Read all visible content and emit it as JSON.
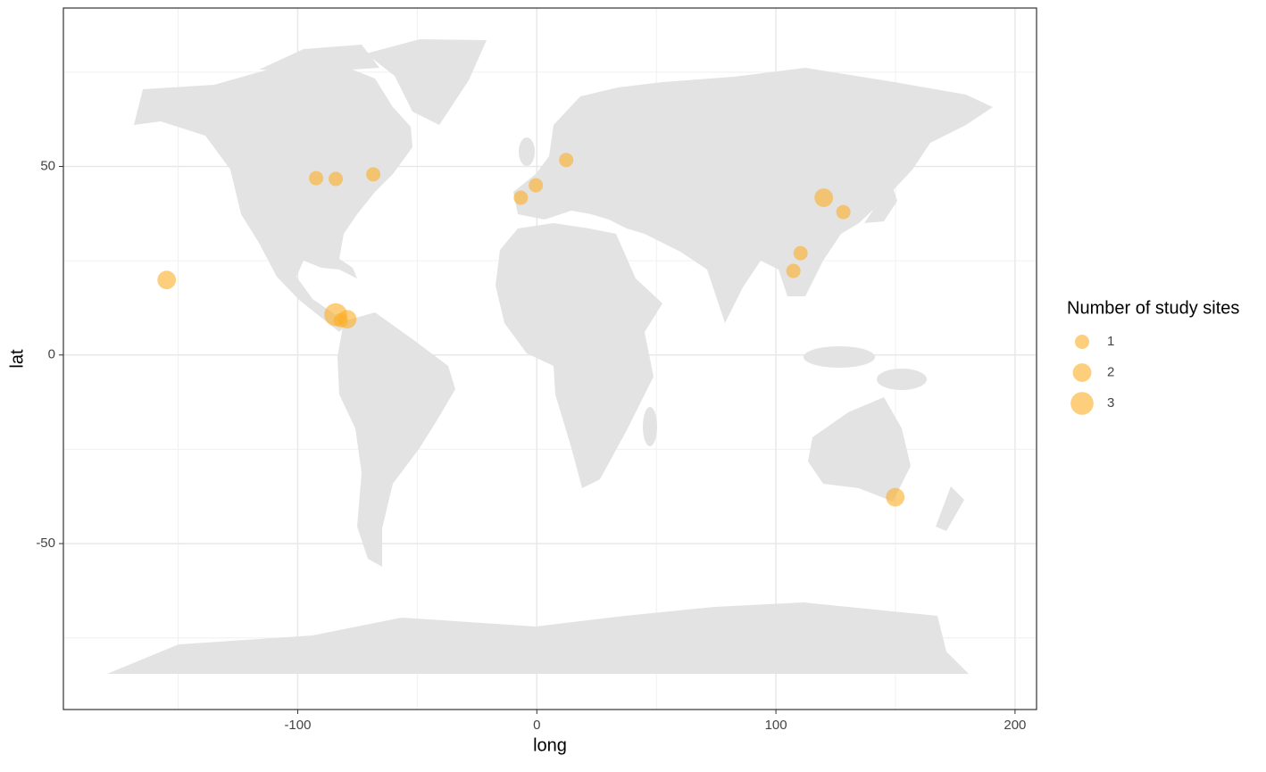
{
  "chart_data": {
    "type": "scatter",
    "x_label": "long",
    "y_label": "lat",
    "xlim": [
      -198,
      209
    ],
    "ylim": [
      -94,
      92
    ],
    "xticks": [
      -100,
      0,
      100,
      200
    ],
    "yticks": [
      -50,
      0,
      50
    ],
    "xminorticks": [
      -150,
      -50,
      50,
      150
    ],
    "yminorticks": [
      -75,
      -25,
      25,
      75
    ],
    "grid": true,
    "color": "#fbae25",
    "legend_title": "Number of study sites",
    "legend_sizes": [
      1,
      2,
      3
    ],
    "legend_position": "right",
    "x": [
      -154.8,
      -92.3,
      -84.1,
      -68.4,
      -84.1,
      -79.3,
      -82,
      -6.7,
      -0.4,
      12.3,
      120,
      128.2,
      110.3,
      107.3,
      149.9
    ],
    "y": [
      19.9,
      46.9,
      46.7,
      47.9,
      10.7,
      9.5,
      9.2,
      41.7,
      45,
      51.7,
      41.7,
      37.9,
      27,
      22.3,
      -37.7
    ],
    "sizes": [
      2,
      1,
      1,
      1,
      3,
      2,
      1,
      1,
      1,
      1,
      2,
      1,
      1,
      1,
      2
    ]
  }
}
